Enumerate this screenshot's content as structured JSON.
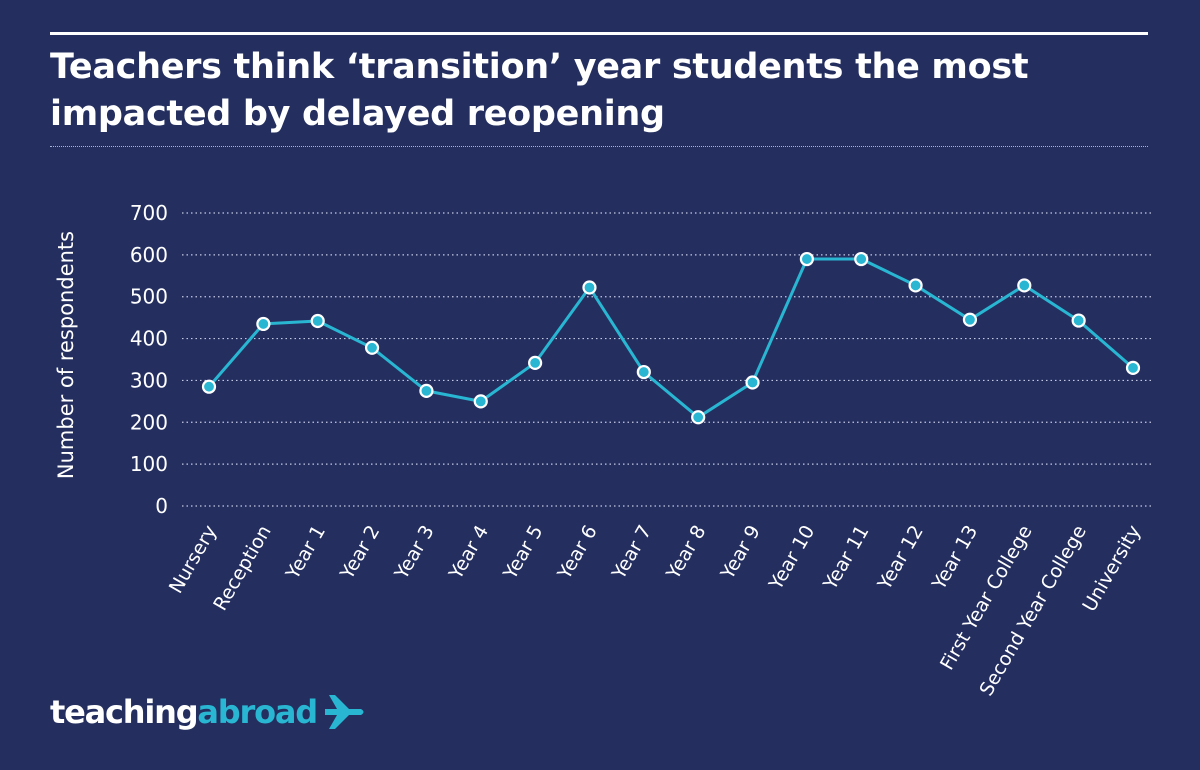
{
  "title_line1": "Teachers think ‘transition’ year students the most",
  "title_line2": "impacted by delayed reopening",
  "brand": {
    "part1": "teaching",
    "part2": "abroad",
    "icon": "airplane-icon"
  },
  "colors": {
    "background": "#242f60",
    "line": "#29b6d2",
    "text": "#ffffff"
  },
  "chart_data": {
    "type": "line",
    "title": "Teachers think ‘transition’ year students the most impacted by delayed reopening",
    "xlabel": "",
    "ylabel": "Number of respondents",
    "ylim": [
      0,
      700
    ],
    "yticks": [
      "0",
      "100",
      "200",
      "300",
      "400",
      "500",
      "600",
      "700"
    ],
    "grid": true,
    "categories": [
      "Nursery",
      "Reception",
      "Year 1",
      "Year 2",
      "Year 3",
      "Year 4",
      "Year 5",
      "Year 6",
      "Year 7",
      "Year 8",
      "Year 9",
      "Year 10",
      "Year 11",
      "Year 12",
      "Year 13",
      "First Year College",
      "Second Year College",
      "University"
    ],
    "series": [
      {
        "values": [
          285,
          435,
          442,
          378,
          275,
          250,
          342,
          522,
          320,
          212,
          295,
          590,
          590,
          527,
          445,
          527,
          443,
          330
        ]
      }
    ]
  }
}
